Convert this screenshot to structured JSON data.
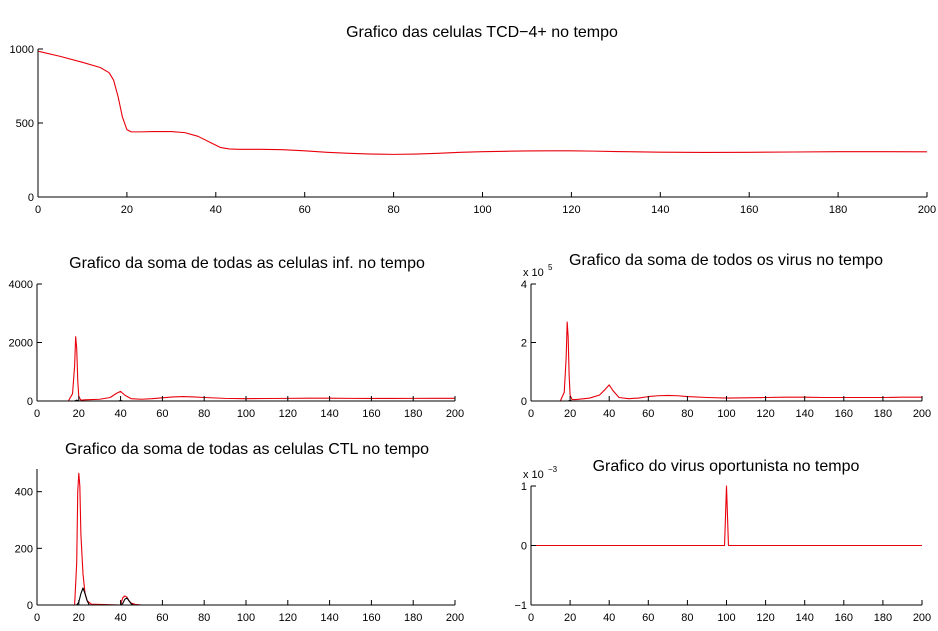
{
  "chart_data": [
    {
      "type": "line",
      "title": "Grafico das celulas TCD−4+ no tempo",
      "xlim": [
        0,
        200
      ],
      "ylim": [
        0,
        1000
      ],
      "xticks": [
        "0",
        "20",
        "40",
        "60",
        "80",
        "100",
        "120",
        "140",
        "160",
        "180",
        "200"
      ],
      "yticks": [
        "0",
        "500",
        "1000"
      ],
      "y_multiplier": "",
      "line_color": "#e8000b",
      "grid": false,
      "series": [
        {
          "color": "#e8000b",
          "x": [
            0,
            5,
            10,
            14,
            16,
            17,
            18,
            19,
            20,
            21,
            23,
            26,
            30,
            33,
            36,
            39,
            41,
            43,
            45,
            50,
            55,
            60,
            65,
            70,
            75,
            80,
            85,
            90,
            95,
            100,
            105,
            110,
            115,
            120,
            125,
            130,
            140,
            150,
            160,
            170,
            180,
            190,
            200
          ],
          "y": [
            985,
            950,
            910,
            875,
            840,
            790,
            680,
            540,
            455,
            440,
            440,
            442,
            442,
            435,
            410,
            365,
            335,
            325,
            322,
            322,
            320,
            312,
            302,
            295,
            290,
            288,
            290,
            295,
            302,
            306,
            309,
            311,
            312,
            312,
            310,
            307,
            303,
            301,
            302,
            304,
            306,
            306,
            305
          ]
        }
      ]
    },
    {
      "type": "line",
      "title": "Grafico da soma de todas as celulas inf. no tempo",
      "xlim": [
        0,
        200
      ],
      "ylim": [
        0,
        4000
      ],
      "xticks": [
        "0",
        "20",
        "40",
        "60",
        "80",
        "100",
        "120",
        "140",
        "160",
        "180",
        "200"
      ],
      "yticks": [
        "0",
        "2000",
        "4000"
      ],
      "y_multiplier": "",
      "grid": false,
      "series": [
        {
          "color": "#e8000b",
          "x": [
            0,
            15,
            17,
            18,
            18.5,
            19,
            19.5,
            20,
            21,
            23,
            30,
            35,
            38,
            40,
            42,
            45,
            50,
            55,
            60,
            65,
            70,
            75,
            80,
            90,
            100,
            110,
            120,
            130,
            140,
            150,
            160,
            170,
            180,
            190,
            200
          ],
          "y": [
            0,
            0,
            250,
            1200,
            2200,
            1800,
            700,
            150,
            30,
            40,
            60,
            120,
            260,
            330,
            200,
            80,
            60,
            80,
            110,
            140,
            150,
            140,
            120,
            90,
            80,
            85,
            90,
            95,
            95,
            90,
            88,
            88,
            90,
            92,
            92
          ]
        },
        {
          "color": "#000000",
          "x": [
            0,
            18,
            19,
            20,
            21,
            39,
            40,
            41,
            42,
            200
          ],
          "y": [
            0,
            0,
            30,
            0,
            0,
            0,
            15,
            0,
            0,
            0
          ]
        }
      ]
    },
    {
      "type": "line",
      "title": "Grafico da soma de todos os virus no tempo",
      "xlim": [
        0,
        200
      ],
      "ylim": [
        0,
        4
      ],
      "xticks": [
        "0",
        "20",
        "40",
        "60",
        "80",
        "100",
        "120",
        "140",
        "160",
        "180",
        "200"
      ],
      "yticks": [
        "0",
        "2",
        "4"
      ],
      "y_multiplier": "x 10",
      "y_multiplier_exp": "5",
      "grid": false,
      "series": [
        {
          "color": "#e8000b",
          "x": [
            0,
            15,
            17,
            18,
            18.5,
            19,
            19.5,
            20,
            21,
            23,
            30,
            35,
            38,
            40,
            42,
            45,
            50,
            55,
            60,
            65,
            70,
            75,
            80,
            90,
            100,
            110,
            120,
            130,
            140,
            150,
            160,
            170,
            180,
            190,
            200
          ],
          "y": [
            0,
            0,
            0.3,
            1.5,
            2.7,
            2.2,
            0.9,
            0.2,
            0.05,
            0.05,
            0.1,
            0.2,
            0.4,
            0.55,
            0.35,
            0.12,
            0.08,
            0.1,
            0.15,
            0.18,
            0.19,
            0.18,
            0.15,
            0.12,
            0.1,
            0.11,
            0.12,
            0.13,
            0.13,
            0.12,
            0.12,
            0.12,
            0.12,
            0.13,
            0.13
          ]
        },
        {
          "color": "#000000",
          "x": [
            0,
            19,
            20,
            21,
            200
          ],
          "y": [
            0,
            0,
            0.02,
            0,
            0
          ]
        }
      ]
    },
    {
      "type": "line",
      "title": "Grafico da soma de todas as celulas CTL no tempo",
      "xlim": [
        0,
        200
      ],
      "ylim": [
        0,
        480
      ],
      "xticks": [
        "0",
        "20",
        "40",
        "60",
        "80",
        "100",
        "120",
        "140",
        "160",
        "180",
        "200"
      ],
      "yticks": [
        "0",
        "200",
        "400"
      ],
      "y_multiplier": "",
      "grid": false,
      "series": [
        {
          "color": "#e8000b",
          "x": [
            0,
            18,
            19,
            19.5,
            20,
            20.5,
            21,
            22,
            23,
            24,
            26,
            40,
            41,
            42,
            43,
            44,
            45,
            47,
            50,
            200
          ],
          "y": [
            0,
            0,
            150,
            400,
            465,
            420,
            250,
            110,
            40,
            15,
            3,
            0,
            25,
            32,
            28,
            15,
            7,
            2,
            0,
            0
          ]
        },
        {
          "color": "#000000",
          "x": [
            0,
            19,
            20,
            21,
            22,
            23,
            24,
            25,
            40,
            41,
            42,
            43,
            44,
            45,
            46,
            200
          ],
          "y": [
            0,
            0,
            10,
            40,
            60,
            40,
            15,
            0,
            0,
            5,
            20,
            25,
            15,
            5,
            0,
            0
          ]
        }
      ]
    },
    {
      "type": "line",
      "title": "Grafico do virus oportunista no tempo",
      "xlim": [
        0,
        200
      ],
      "ylim": [
        -1,
        1
      ],
      "xticks": [
        "0",
        "20",
        "40",
        "60",
        "80",
        "100",
        "120",
        "140",
        "160",
        "180",
        "200"
      ],
      "yticks": [
        "−1",
        "0",
        "1"
      ],
      "y_multiplier": "x 10",
      "y_multiplier_exp": "−3",
      "grid": false,
      "series": [
        {
          "color": "#e8000b",
          "x": [
            0,
            99,
            99.5,
            100,
            100.5,
            101,
            200
          ],
          "y": [
            0,
            0,
            0.5,
            1.0,
            0.5,
            0,
            0
          ]
        }
      ]
    }
  ]
}
